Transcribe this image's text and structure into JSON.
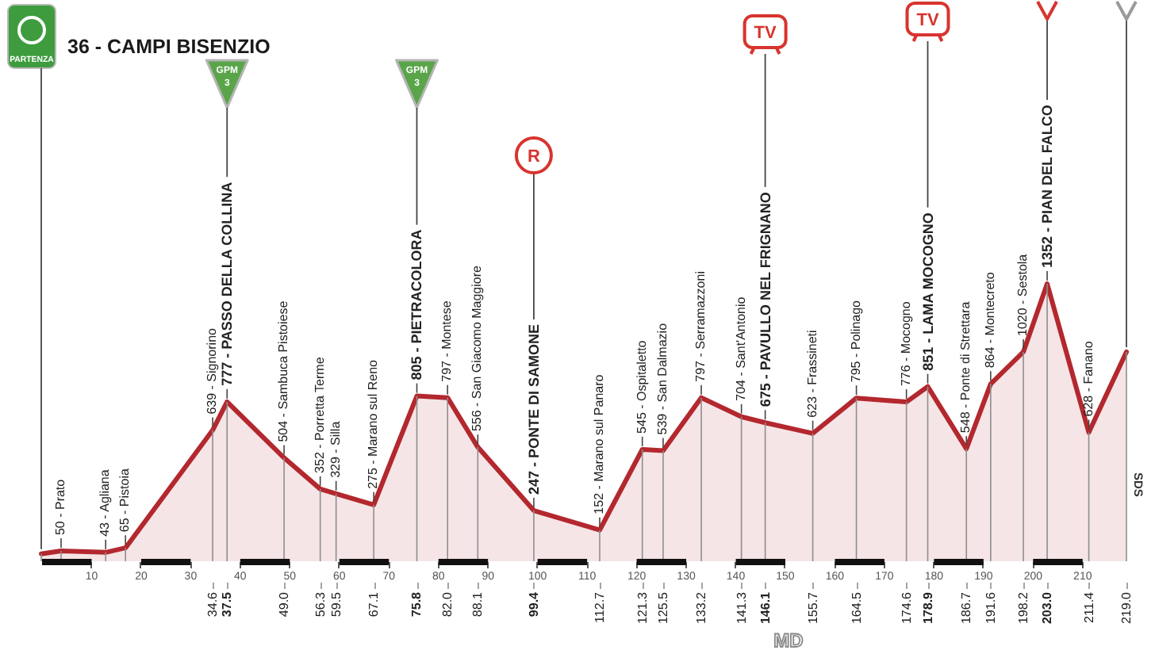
{
  "chart_data": {
    "type": "area",
    "title": "36 - CAMPI BISENZIO",
    "x": [
      0,
      4,
      13,
      17,
      34.6,
      37.5,
      49.0,
      56.3,
      59.5,
      67.1,
      75.8,
      82.0,
      88.1,
      99.4,
      112.7,
      121.3,
      125.5,
      133.2,
      141.3,
      146.1,
      155.7,
      164.5,
      174.6,
      178.9,
      186.7,
      191.6,
      198.2,
      203.0,
      211.4,
      219.0
    ],
    "series": [
      {
        "color": "#b3282e",
        "values": [
          36,
          50,
          43,
          65,
          639,
          777,
          504,
          352,
          329,
          275,
          805,
          797,
          556,
          247,
          152,
          545,
          539,
          797,
          704,
          675,
          623,
          795,
          776,
          851,
          548,
          864,
          1020,
          1352,
          628,
          1020
        ],
        "value_labels": [
          null,
          "50 - Prato",
          "43 - Agliana",
          "65 - Pistoia",
          "639 - Signorino",
          "777 - PASSO DELLA COLLINA",
          "504 - Sambuca Pistoiese",
          "352 - Porretta Terme",
          "329 - Silla",
          "275 - Marano sul Reno",
          "805 - PIETRACOLORA",
          "797 - Montese",
          "556 - San Giacomo Maggiore",
          "247 - PONTE DI SAMONE",
          "152 - Marano sul Panaro",
          "545 - Ospitaletto",
          "539 - San Dalmazio",
          "797 - Serramazzoni",
          "704 - Sant'Antonio",
          "675 - PAVULLO NEL FRIGNANO",
          "623 - Frassineti",
          "795 - Polinago",
          "776 - Mocogno",
          "851 - LAMA MOCOGNO",
          "548 - Ponte di Strettara",
          "864 - Montecreto",
          "1020 - Sestola",
          "1352 - PIAN DEL FALCO",
          "628 - Fanano",
          null
        ]
      }
    ],
    "xlim": [
      0,
      219
    ],
    "xticks": [
      10,
      20,
      30,
      40,
      50,
      60,
      70,
      80,
      90,
      100,
      110,
      120,
      130,
      140,
      150,
      160,
      170,
      180,
      190,
      200,
      210
    ],
    "x2lim": [
      0,
      219
    ],
    "x2ticks": [
      34.6,
      37.5,
      {
        "value": 49.0,
        "label": "49.0"
      },
      56.3,
      59.5,
      67.1,
      75.8,
      {
        "value": 82.0,
        "label": "82.0"
      },
      88.1,
      99.4,
      112.7,
      121.3,
      125.5,
      133.2,
      141.3,
      146.1,
      155.7,
      164.5,
      174.6,
      178.9,
      186.7,
      191.6,
      198.2,
      {
        "value": 203.0,
        "label": "203.0"
      },
      211.4,
      {
        "value": 219.0,
        "label": "219.0"
      }
    ],
    "tick_labels": "x",
    "annotations": [
      "PARTENZA",
      "GPM 3",
      "GPM 3",
      "R",
      "TV",
      "TV",
      "MD",
      "SDS"
    ]
  }
}
